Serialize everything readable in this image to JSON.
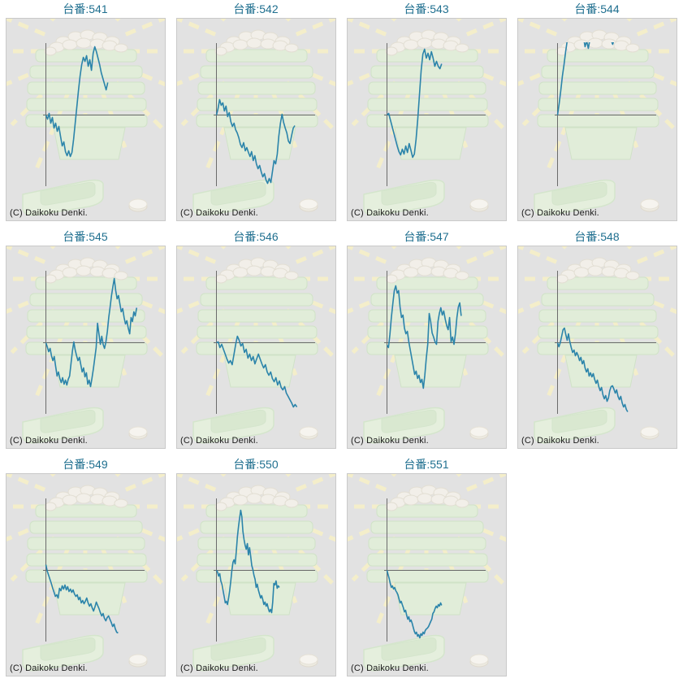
{
  "page": {
    "copyright": "(C) Daikoku Denki.",
    "title_prefix": "台番:",
    "background": "#ffffff"
  },
  "style": {
    "line_color": "#2b84aa",
    "axis_color": "#6b6b6b",
    "title_color": "#1f6f8f",
    "panel_bg": "#e2e2e2",
    "panel_border": "#c9c9c9",
    "ray_color": "#f6f0c8",
    "slab_fill": "#e1efd9",
    "slab_edge": "#cfe3c5",
    "ball_fill": "#f4f1ea",
    "ball_edge": "#e3ded2",
    "tray_fill": "#e6f1dd",
    "tray_edge": "#d3e6ca",
    "tray_inner": "#d9e9cf"
  },
  "chart_data": [
    {
      "type": "line",
      "title": "台番:541",
      "machine": "541",
      "xlabel": "",
      "ylabel": "",
      "grid": false,
      "legend": null,
      "baseline": 0,
      "ylim": [
        -90,
        95
      ],
      "span": 0.6,
      "values": [
        0,
        -5,
        2,
        -10,
        -3,
        -16,
        -10,
        -20,
        -14,
        -26,
        -38,
        -33,
        -45,
        -50,
        -44,
        -51,
        -46,
        -30,
        -10,
        10,
        30,
        48,
        62,
        71,
        66,
        73,
        60,
        68,
        55,
        76,
        84,
        78,
        70,
        62,
        52,
        45,
        38,
        31,
        40
      ]
    },
    {
      "type": "line",
      "title": "台番:542",
      "machine": "542",
      "xlabel": "",
      "ylabel": "",
      "grid": false,
      "legend": null,
      "baseline": 0,
      "ylim": [
        -90,
        95
      ],
      "span": 0.76,
      "values": [
        0,
        8,
        19,
        12,
        15,
        5,
        11,
        -2,
        3,
        -8,
        -14,
        -10,
        -18,
        -22,
        -28,
        -36,
        -40,
        -34,
        -44,
        -40,
        -46,
        -51,
        -45,
        -56,
        -50,
        -60,
        -66,
        -62,
        -70,
        -76,
        -72,
        -80,
        -84,
        -78,
        -83,
        -70,
        -56,
        -60,
        -48,
        -26,
        -10,
        1,
        -9,
        -16,
        -22,
        -32,
        -35,
        -25,
        -16,
        -13
      ]
    },
    {
      "type": "line",
      "title": "台番:543",
      "machine": "543",
      "xlabel": "",
      "ylabel": "",
      "grid": false,
      "legend": null,
      "baseline": 0,
      "ylim": [
        -90,
        95
      ],
      "span": 0.53,
      "values": [
        0,
        2,
        -6,
        -14,
        -22,
        -30,
        -38,
        -45,
        -49,
        -42,
        -48,
        -38,
        -46,
        -35,
        -43,
        -52,
        -48,
        -30,
        -5,
        25,
        55,
        75,
        81,
        70,
        76,
        68,
        78,
        70,
        60,
        66,
        60,
        57,
        63
      ]
    },
    {
      "type": "line",
      "title": "台番:544",
      "machine": "544",
      "xlabel": "",
      "ylabel": "",
      "grid": false,
      "legend": null,
      "baseline": 0,
      "ylim": [
        -90,
        95
      ],
      "span": 0.55,
      "values": [
        0,
        14,
        30,
        48,
        62,
        78,
        92,
        106,
        118,
        126,
        131,
        128,
        133,
        127,
        131,
        121,
        96,
        84,
        91,
        82,
        93,
        110,
        121,
        126,
        123,
        129,
        131,
        127,
        129,
        131,
        126,
        121,
        101,
        92,
        87,
        93
      ]
    },
    {
      "type": "line",
      "title": "台番:545",
      "machine": "545",
      "xlabel": "",
      "ylabel": "",
      "grid": false,
      "legend": null,
      "baseline": 0,
      "ylim": [
        -90,
        95
      ],
      "span": 0.88,
      "values": [
        0,
        -5,
        -11,
        -7,
        -16,
        -22,
        -17,
        -29,
        -41,
        -36,
        -44,
        -49,
        -43,
        -51,
        -46,
        -52,
        -45,
        -41,
        -26,
        -10,
        1,
        -9,
        -16,
        -22,
        -18,
        -27,
        -36,
        -31,
        -42,
        -37,
        -51,
        -46,
        -54,
        -44,
        -32,
        -19,
        -6,
        24,
        11,
        -2,
        8,
        -2,
        -7,
        1,
        14,
        31,
        44,
        58,
        69,
        79,
        64,
        54,
        58,
        48,
        38,
        42,
        31,
        23,
        27,
        18,
        11,
        31,
        26,
        38,
        33,
        43
      ]
    },
    {
      "type": "line",
      "title": "台番:546",
      "machine": "546",
      "xlabel": "",
      "ylabel": "",
      "grid": false,
      "legend": null,
      "baseline": 0,
      "ylim": [
        -90,
        95
      ],
      "span": 0.78,
      "values": [
        0,
        1,
        -6,
        -2,
        -8,
        -14,
        -20,
        -25,
        -22,
        -27,
        -15,
        -2,
        8,
        3,
        -4,
        -1,
        -12,
        -8,
        -19,
        -14,
        -22,
        -17,
        -26,
        -20,
        -14,
        -20,
        -26,
        -31,
        -27,
        -36,
        -40,
        -36,
        -44,
        -48,
        -43,
        -52,
        -47,
        -55,
        -58,
        -54,
        -62,
        -66,
        -70,
        -74,
        -79,
        -76,
        -79
      ]
    },
    {
      "type": "line",
      "title": "台番:547",
      "machine": "547",
      "xlabel": "",
      "ylabel": "",
      "grid": false,
      "legend": null,
      "baseline": 0,
      "ylim": [
        -90,
        95
      ],
      "span": 0.72,
      "values": [
        -3,
        -6,
        10,
        31,
        48,
        64,
        70,
        61,
        64,
        44,
        31,
        34,
        18,
        11,
        14,
        1,
        -9,
        -19,
        -29,
        -39,
        -35,
        -44,
        -40,
        -49,
        -45,
        -56,
        -40,
        -19,
        -2,
        36,
        26,
        12,
        7,
        1,
        -2,
        26,
        36,
        43,
        34,
        39,
        29,
        21,
        16,
        31,
        1,
        7,
        -2,
        11,
        31,
        44,
        49,
        33
      ]
    },
    {
      "type": "line",
      "title": "台番:548",
      "machine": "548",
      "xlabel": "",
      "ylabel": "",
      "grid": false,
      "legend": null,
      "baseline": 0,
      "ylim": [
        -90,
        95
      ],
      "span": 0.68,
      "values": [
        0,
        -5,
        0,
        8,
        16,
        18,
        10,
        3,
        11,
        1,
        -6,
        -12,
        -9,
        -16,
        -12,
        -16,
        -22,
        -18,
        -26,
        -22,
        -31,
        -36,
        -32,
        -41,
        -37,
        -42,
        -38,
        -45,
        -50,
        -46,
        -54,
        -59,
        -55,
        -64,
        -69,
        -65,
        -72,
        -68,
        -59,
        -54,
        -53,
        -57,
        -62,
        -58,
        -66,
        -70,
        -66,
        -74,
        -79,
        -76,
        -82,
        -85
      ]
    },
    {
      "type": "line",
      "title": "台番:549",
      "machine": "549",
      "xlabel": "",
      "ylabel": "",
      "grid": false,
      "legend": null,
      "baseline": 0,
      "ylim": [
        -90,
        95
      ],
      "span": 0.7,
      "values": [
        7,
        -1,
        -6,
        -11,
        -16,
        -22,
        -27,
        -32,
        -30,
        -34,
        -22,
        -25,
        -19,
        -23,
        -18,
        -24,
        -20,
        -26,
        -23,
        -27,
        -24,
        -29,
        -32,
        -30,
        -36,
        -33,
        -40,
        -37,
        -41,
        -38,
        -34,
        -40,
        -44,
        -41,
        -46,
        -50,
        -45,
        -39,
        -43,
        -47,
        -52,
        -56,
        -53,
        -59,
        -62,
        -58,
        -56,
        -60,
        -64,
        -69,
        -66,
        -72,
        -76,
        -77
      ]
    },
    {
      "type": "line",
      "title": "台番:550",
      "machine": "550",
      "xlabel": "",
      "ylabel": "",
      "grid": false,
      "legend": null,
      "baseline": 0,
      "ylim": [
        -90,
        95
      ],
      "span": 0.61,
      "values": [
        0,
        -2,
        -7,
        -4,
        -13,
        -17,
        -25,
        -32,
        -40,
        -38,
        -42,
        -34,
        -25,
        -13,
        0,
        10,
        13,
        8,
        24,
        41,
        54,
        64,
        74,
        66,
        48,
        38,
        31,
        26,
        33,
        19,
        28,
        18,
        6,
        1,
        -6,
        -11,
        -21,
        -17,
        -24,
        -29,
        -34,
        -31,
        -36,
        -42,
        -39,
        -44,
        -41,
        -47,
        -51,
        -48,
        -52,
        -39,
        -16,
        -18,
        -13,
        -22,
        -19,
        -21
      ]
    },
    {
      "type": "line",
      "title": "台番:551",
      "machine": "551",
      "xlabel": "",
      "ylabel": "",
      "grid": false,
      "legend": null,
      "baseline": 0,
      "ylim": [
        -90,
        95
      ],
      "span": 0.53,
      "values": [
        0,
        -5,
        -10,
        -16,
        -21,
        -19,
        -23,
        -21,
        -25,
        -27,
        -30,
        -35,
        -40,
        -38,
        -42,
        -46,
        -51,
        -49,
        -55,
        -60,
        -57,
        -63,
        -61,
        -65,
        -70,
        -75,
        -78,
        -76,
        -81,
        -79,
        -83,
        -78,
        -80,
        -76,
        -78,
        -74,
        -72,
        -71,
        -69,
        -66,
        -63,
        -60,
        -53,
        -51,
        -47,
        -44,
        -46,
        -42,
        -44,
        -40,
        -43
      ]
    }
  ]
}
